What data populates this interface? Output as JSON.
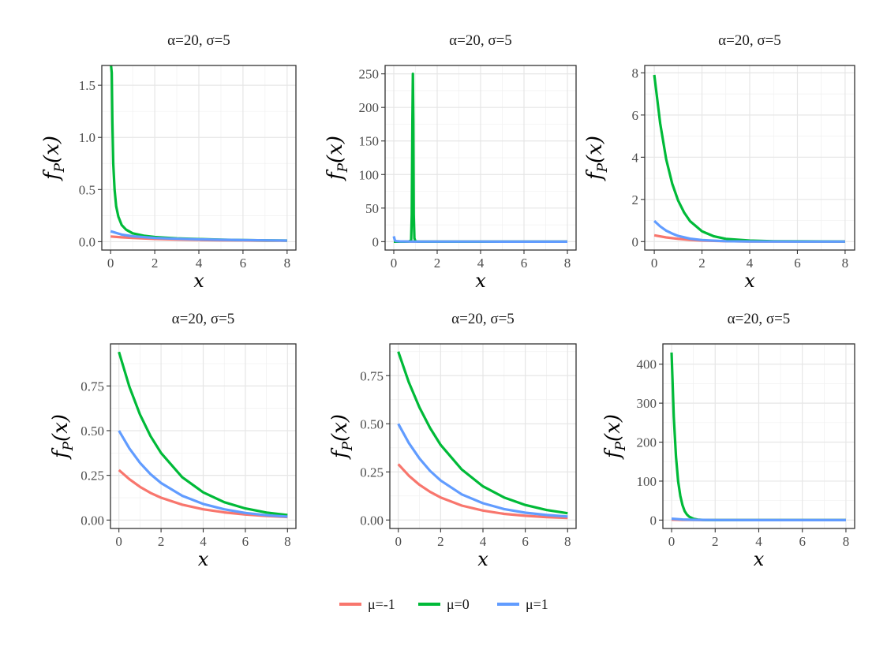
{
  "legend": {
    "items": [
      {
        "label": "μ=-1",
        "color": "#F8766D"
      },
      {
        "label": "μ=0",
        "color": "#00BA38"
      },
      {
        "label": "μ=1",
        "color": "#619CFF"
      }
    ]
  },
  "chart_data": [
    {
      "type": "line",
      "title": "α=20, σ=5",
      "xlabel": "x",
      "ylabel": "f_P(x)",
      "xlim": [
        -0.4,
        8.4
      ],
      "ylim": [
        -0.08,
        1.69
      ],
      "xticks": [
        0,
        2,
        4,
        6,
        8
      ],
      "yticks": [
        0.0,
        0.5,
        1.0,
        1.5
      ],
      "ytick_labels": [
        "0.0",
        "0.5",
        "1.0",
        "1.5"
      ],
      "grid": true,
      "series": [
        {
          "name": "μ=-1",
          "x": [
            0,
            0.5,
            1,
            2,
            3,
            4,
            5,
            6,
            7,
            8
          ],
          "y": [
            0.05,
            0.042,
            0.036,
            0.027,
            0.021,
            0.017,
            0.014,
            0.012,
            0.01,
            0.009
          ]
        },
        {
          "name": "μ=0",
          "x": [
            0.02,
            0.05,
            0.08,
            0.12,
            0.18,
            0.25,
            0.35,
            0.5,
            0.7,
            1.0,
            1.5,
            2,
            3,
            4,
            5,
            6,
            7,
            8
          ],
          "y": [
            1.69,
            1.62,
            1.15,
            0.75,
            0.5,
            0.34,
            0.24,
            0.16,
            0.115,
            0.08,
            0.058,
            0.045,
            0.032,
            0.025,
            0.02,
            0.016,
            0.013,
            0.011
          ]
        },
        {
          "name": "μ=1",
          "x": [
            0,
            0.5,
            1,
            2,
            3,
            4,
            5,
            6,
            7,
            8
          ],
          "y": [
            0.1,
            0.068,
            0.052,
            0.036,
            0.028,
            0.022,
            0.018,
            0.015,
            0.013,
            0.011
          ]
        }
      ]
    },
    {
      "type": "line",
      "title": "α=20, σ=5",
      "xlabel": "x",
      "ylabel": "f_P(x)",
      "xlim": [
        -0.4,
        8.4
      ],
      "ylim": [
        -12.5,
        262.5
      ],
      "xticks": [
        0,
        2,
        4,
        6,
        8
      ],
      "yticks": [
        0,
        50,
        100,
        150,
        200,
        250
      ],
      "ytick_labels": [
        "0",
        "50",
        "100",
        "150",
        "200",
        "250"
      ],
      "grid": true,
      "series": [
        {
          "name": "μ=-1",
          "x": [
            0,
            1,
            2,
            4,
            6,
            8
          ],
          "y": [
            0.3,
            0.1,
            0.03,
            0.01,
            0.005,
            0.002
          ]
        },
        {
          "name": "μ=0",
          "x": [
            0.0,
            0.1,
            0.2,
            0.3,
            0.5,
            0.7,
            0.8,
            0.83,
            0.86,
            0.88,
            0.9,
            0.92,
            0.95,
            1.0,
            1.1,
            1.3,
            1.6,
            2,
            4,
            6,
            8
          ],
          "y": [
            0,
            0,
            0,
            0,
            0,
            0.2,
            2,
            40,
            180,
            250,
            180,
            40,
            5,
            0.5,
            0.05,
            0,
            0,
            0,
            0,
            0,
            0
          ]
        },
        {
          "name": "μ=1",
          "x": [
            0,
            0.05,
            0.1,
            0.3,
            1,
            2,
            4,
            6,
            8
          ],
          "y": [
            8,
            2,
            0.8,
            0.3,
            0.1,
            0.05,
            0.02,
            0.01,
            0.005
          ]
        }
      ]
    },
    {
      "type": "line",
      "title": "α=20, σ=5",
      "xlabel": "x",
      "ylabel": "f_P(x)",
      "xlim": [
        -0.4,
        8.4
      ],
      "ylim": [
        -0.4,
        8.35
      ],
      "xticks": [
        0,
        2,
        4,
        6,
        8
      ],
      "yticks": [
        0,
        2,
        4,
        6,
        8
      ],
      "ytick_labels": [
        "0",
        "2",
        "4",
        "6",
        "8"
      ],
      "grid": true,
      "series": [
        {
          "name": "μ=-1",
          "x": [
            0,
            0.5,
            1,
            1.5,
            2,
            3,
            4,
            6,
            8
          ],
          "y": [
            0.3,
            0.2,
            0.13,
            0.08,
            0.05,
            0.02,
            0.008,
            0.002,
            0.0005
          ]
        },
        {
          "name": "μ=0",
          "x": [
            0,
            0.25,
            0.5,
            0.75,
            1,
            1.25,
            1.5,
            2,
            2.5,
            3,
            4,
            5,
            6,
            8
          ],
          "y": [
            7.9,
            5.6,
            3.9,
            2.75,
            1.95,
            1.38,
            0.97,
            0.49,
            0.25,
            0.13,
            0.05,
            0.02,
            0.01,
            0.002
          ]
        },
        {
          "name": "μ=1",
          "x": [
            0,
            0.25,
            0.5,
            0.75,
            1,
            1.5,
            2,
            3,
            4,
            6,
            8
          ],
          "y": [
            0.98,
            0.72,
            0.52,
            0.38,
            0.27,
            0.14,
            0.07,
            0.02,
            0.006,
            0.001,
            0.0002
          ]
        }
      ]
    },
    {
      "type": "line",
      "title": "α=20, σ=5",
      "xlabel": "x",
      "ylabel": "f_P(x)",
      "xlim": [
        -0.4,
        8.4
      ],
      "ylim": [
        -0.047,
        0.985
      ],
      "xticks": [
        0,
        2,
        4,
        6,
        8
      ],
      "yticks": [
        0.0,
        0.25,
        0.5,
        0.75
      ],
      "ytick_labels": [
        "0.00",
        "0.25",
        "0.50",
        "0.75"
      ],
      "grid": true,
      "series": [
        {
          "name": "μ=-1",
          "x": [
            0,
            0.5,
            1,
            1.5,
            2,
            3,
            4,
            5,
            6,
            7,
            8
          ],
          "y": [
            0.28,
            0.228,
            0.186,
            0.152,
            0.125,
            0.086,
            0.06,
            0.043,
            0.031,
            0.023,
            0.017
          ]
        },
        {
          "name": "μ=0",
          "x": [
            0,
            0.5,
            1,
            1.5,
            2,
            3,
            4,
            5,
            6,
            7,
            8
          ],
          "y": [
            0.94,
            0.745,
            0.59,
            0.47,
            0.375,
            0.24,
            0.155,
            0.1,
            0.065,
            0.042,
            0.028
          ]
        },
        {
          "name": "μ=1",
          "x": [
            0,
            0.5,
            1,
            1.5,
            2,
            3,
            4,
            5,
            6,
            7,
            8
          ],
          "y": [
            0.5,
            0.4,
            0.32,
            0.257,
            0.207,
            0.136,
            0.09,
            0.06,
            0.04,
            0.027,
            0.019
          ]
        }
      ]
    },
    {
      "type": "line",
      "title": "α=20, σ=5",
      "xlabel": "x",
      "ylabel": "f_P(x)",
      "xlim": [
        -0.4,
        8.4
      ],
      "ylim": [
        -0.044,
        0.915
      ],
      "xticks": [
        0,
        2,
        4,
        6,
        8
      ],
      "yticks": [
        0.0,
        0.25,
        0.5,
        0.75
      ],
      "ytick_labels": [
        "0.00",
        "0.25",
        "0.50",
        "0.75"
      ],
      "grid": true,
      "series": [
        {
          "name": "μ=-1",
          "x": [
            0,
            0.5,
            1,
            1.5,
            2,
            3,
            4,
            5,
            6,
            7,
            8
          ],
          "y": [
            0.29,
            0.23,
            0.183,
            0.146,
            0.117,
            0.075,
            0.049,
            0.032,
            0.022,
            0.015,
            0.011
          ]
        },
        {
          "name": "μ=0",
          "x": [
            0,
            0.5,
            1,
            1.5,
            2,
            3,
            4,
            5,
            6,
            7,
            8
          ],
          "y": [
            0.875,
            0.715,
            0.585,
            0.478,
            0.39,
            0.262,
            0.175,
            0.117,
            0.078,
            0.052,
            0.035
          ]
        },
        {
          "name": "μ=1",
          "x": [
            0,
            0.5,
            1,
            1.5,
            2,
            3,
            4,
            5,
            6,
            7,
            8
          ],
          "y": [
            0.5,
            0.4,
            0.32,
            0.255,
            0.205,
            0.133,
            0.087,
            0.057,
            0.038,
            0.026,
            0.018
          ]
        }
      ]
    },
    {
      "type": "line",
      "title": "α=20, σ=5",
      "xlabel": "x",
      "ylabel": "f_P(x)",
      "xlim": [
        -0.4,
        8.4
      ],
      "ylim": [
        -21.5,
        452
      ],
      "xticks": [
        0,
        2,
        4,
        6,
        8
      ],
      "yticks": [
        0,
        100,
        200,
        300,
        400
      ],
      "ytick_labels": [
        "0",
        "100",
        "200",
        "300",
        "400"
      ],
      "grid": true,
      "series": [
        {
          "name": "μ=-1",
          "x": [
            0,
            0.5,
            1,
            2,
            4,
            6,
            8
          ],
          "y": [
            1.2,
            0.6,
            0.3,
            0.1,
            0.02,
            0.005,
            0.001
          ]
        },
        {
          "name": "μ=0",
          "x": [
            0,
            0.1,
            0.2,
            0.3,
            0.4,
            0.5,
            0.6,
            0.7,
            0.8,
            1.0,
            1.2,
            1.5,
            2,
            4,
            6,
            8
          ],
          "y": [
            430,
            265,
            163,
            100,
            62,
            38,
            23,
            14.5,
            9,
            3.4,
            1.3,
            0.3,
            0.03,
            0,
            0,
            0
          ]
        },
        {
          "name": "μ=1",
          "x": [
            0,
            0.5,
            1,
            2,
            4,
            6,
            8
          ],
          "y": [
            3.5,
            1.5,
            0.7,
            0.2,
            0.04,
            0.01,
            0.002
          ]
        }
      ]
    }
  ]
}
